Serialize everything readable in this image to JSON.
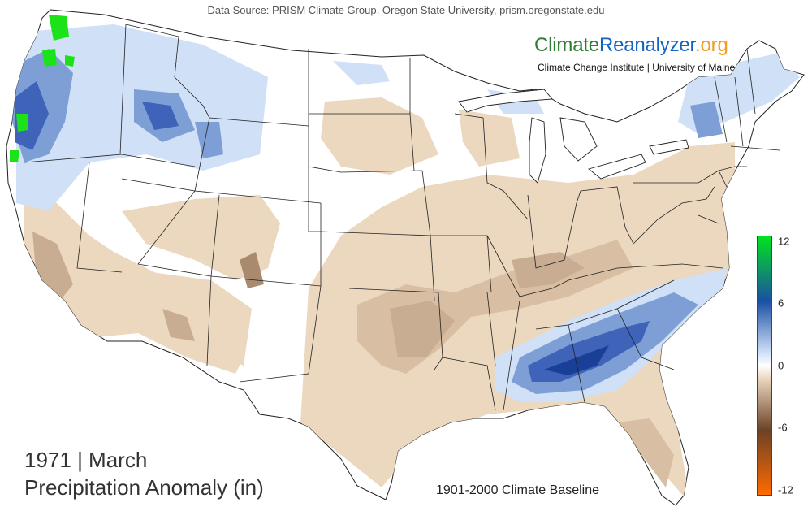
{
  "header": {
    "source": "Data Source: PRISM Climate Group, Oregon State University, prism.oregonstate.edu"
  },
  "brand": {
    "part1": "Climate",
    "part2": "Reanalyzer",
    "part3": ".org",
    "subtitle": "Climate Change Institute | University of Maine",
    "colors": {
      "climate": "#2e7d32",
      "reanalyzer": "#1565c0",
      "org": "#f29d1f"
    }
  },
  "map": {
    "title_line1": "1971 | March",
    "title_line2": "Precipitation Anomaly (in)",
    "baseline": "1901-2000 Climate Baseline"
  },
  "legend": {
    "unit": "in",
    "ticks": [
      "12",
      "6",
      "0",
      "-6",
      "-12"
    ],
    "tick_values": [
      12,
      6,
      0,
      -6,
      -12
    ],
    "range": [
      -12,
      12
    ],
    "colors": {
      "wet_extreme": "#00e31f",
      "wet_strong": "#1a4fa3",
      "wet_mild": "#cfe0f7",
      "neutral": "#ffffff",
      "dry_mild": "#ecd7bf",
      "dry_strong": "#6b4226",
      "dry_extreme": "#ff6a00"
    }
  }
}
